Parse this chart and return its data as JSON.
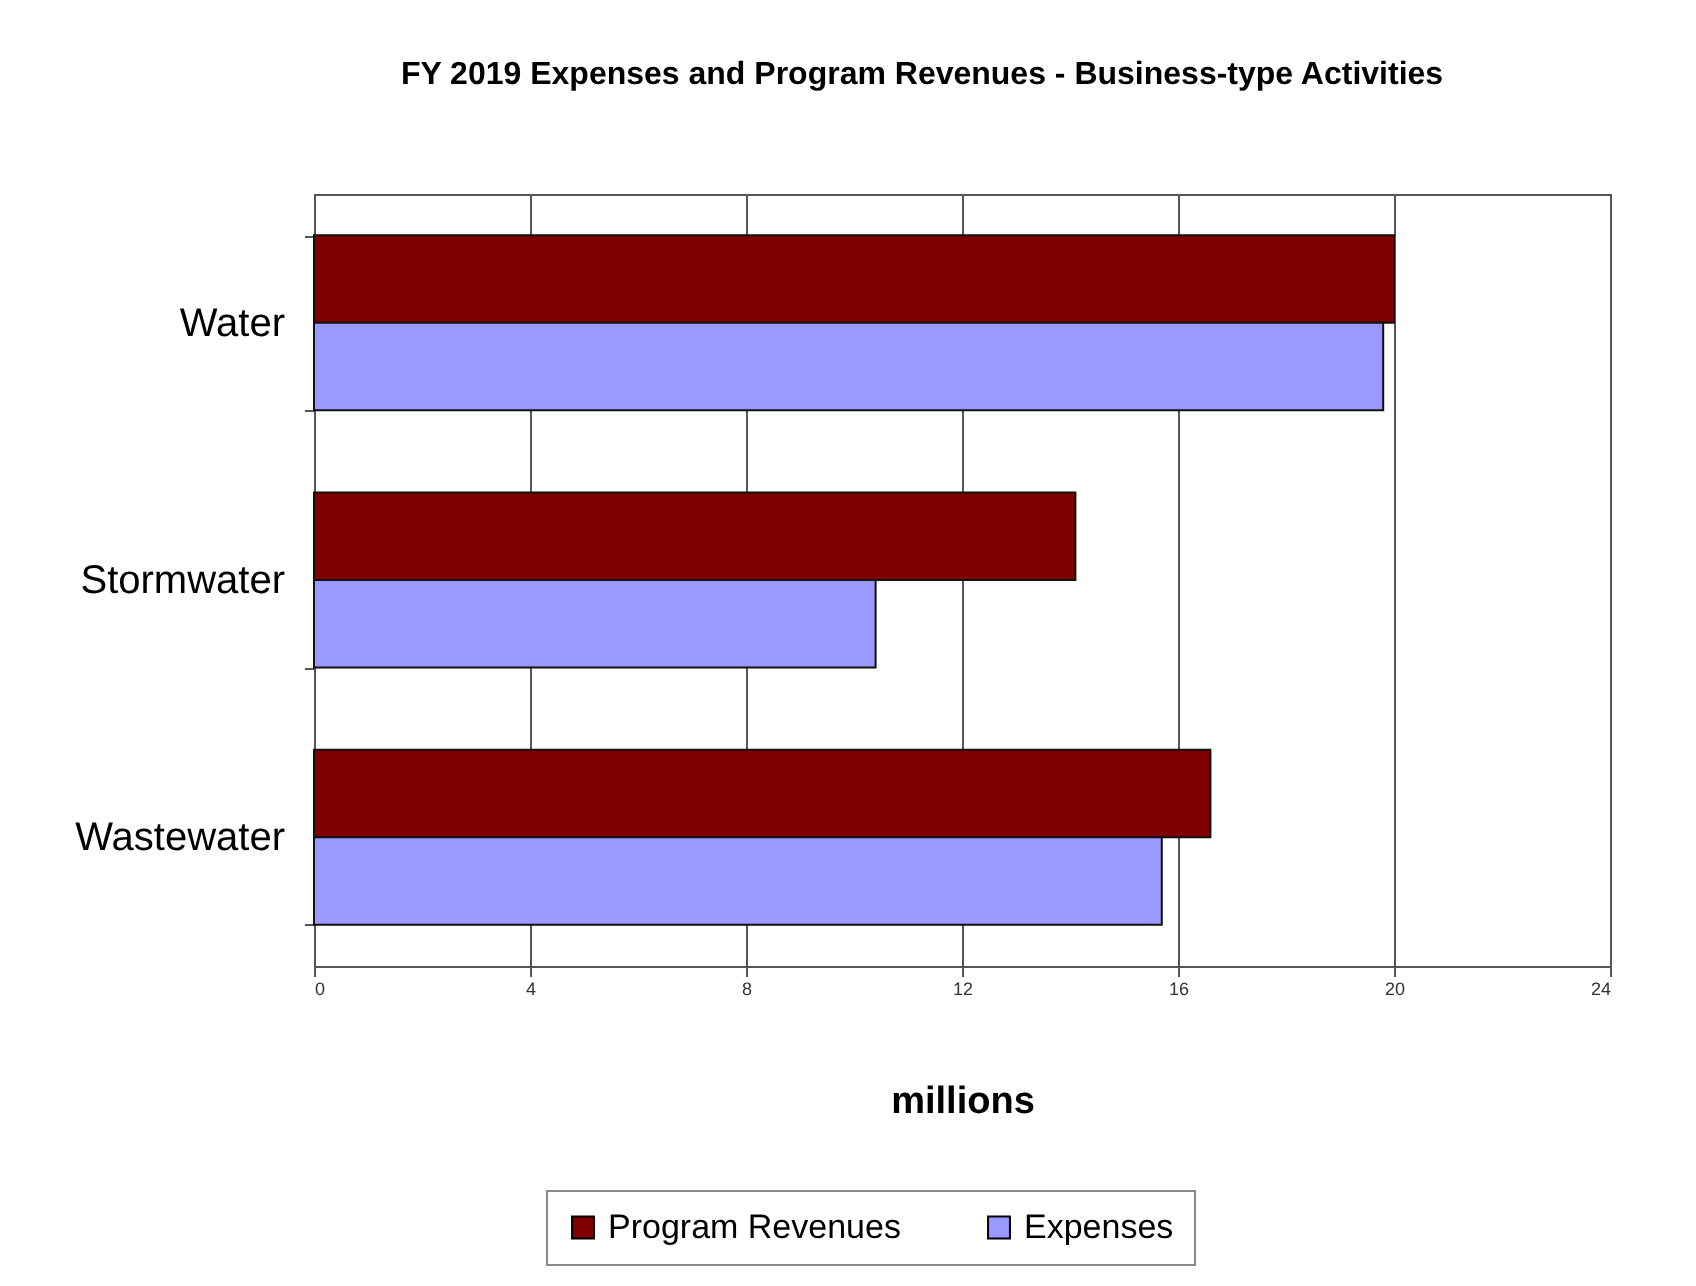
{
  "chart_data": {
    "type": "bar",
    "orientation": "horizontal",
    "title": "FY 2019 Expenses and Program Revenues - Business-type Activities",
    "xlabel": "millions",
    "categories": [
      "Water",
      "Stormwater",
      "Wastewater"
    ],
    "series": [
      {
        "name": "Program Revenues",
        "color": "#800000",
        "values": [
          20.0,
          14.1,
          16.6
        ]
      },
      {
        "name": "Expenses",
        "color": "#9999ff",
        "values": [
          19.8,
          10.4,
          15.7
        ]
      }
    ],
    "xlim": [
      0,
      24
    ],
    "xticks": [
      0,
      4,
      8,
      12,
      16,
      20,
      24
    ],
    "grid": "x",
    "legend": "bottom"
  }
}
